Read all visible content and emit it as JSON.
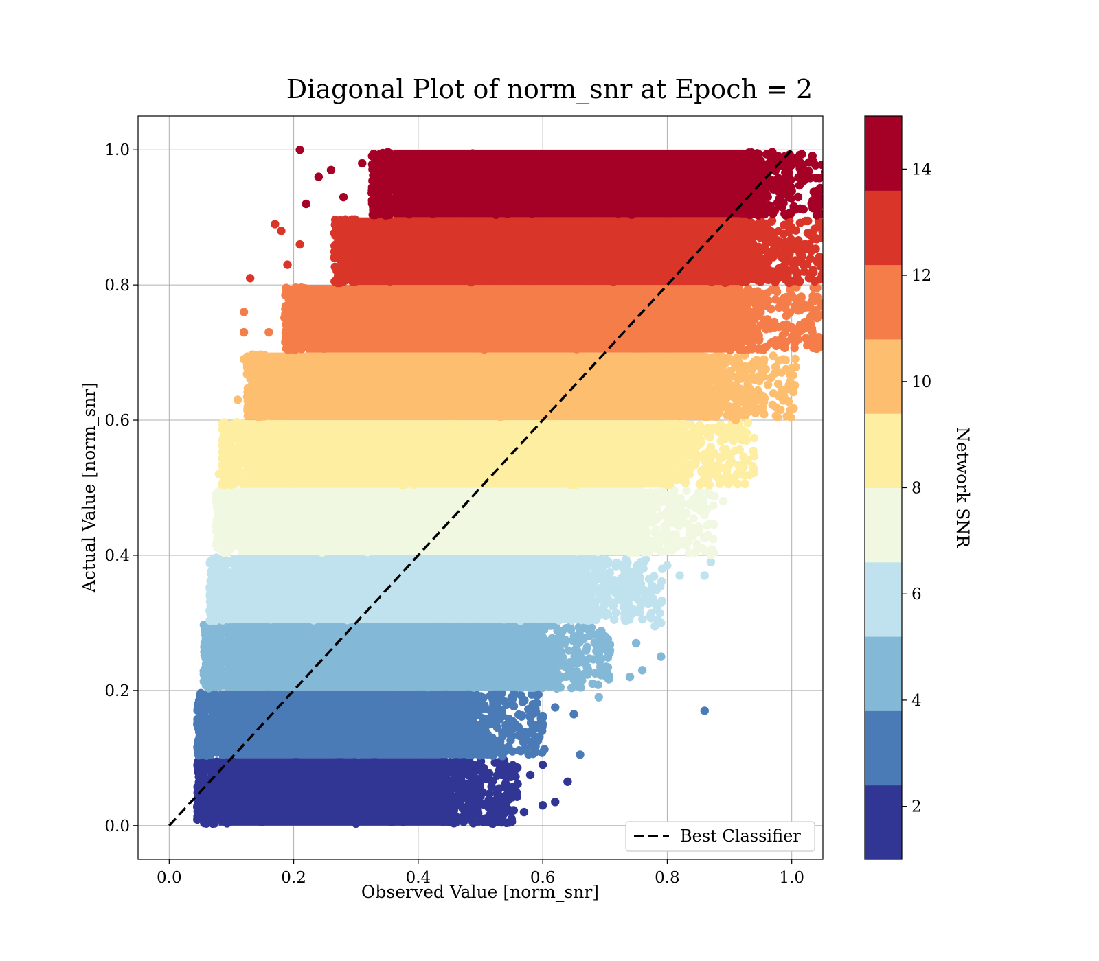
{
  "chart_data": {
    "type": "scatter",
    "title": "Diagonal Plot of norm_snr at Epoch = 2",
    "xlabel": "Observed Value [norm_snr]",
    "ylabel": "Actual Value [norm_snr]",
    "xlim": [
      -0.05,
      1.05
    ],
    "ylim": [
      -0.05,
      1.05
    ],
    "x_ticks": [
      "0.0",
      "0.2",
      "0.4",
      "0.6",
      "0.8",
      "1.0"
    ],
    "y_ticks": [
      "0.0",
      "0.2",
      "0.4",
      "0.6",
      "0.8",
      "1.0"
    ],
    "grid": true,
    "legend": {
      "placement": "lower-right",
      "entries": [
        "Best Classifier"
      ]
    },
    "reference_line": {
      "name": "Best Classifier",
      "style": "dashed",
      "color": "#000000",
      "x": [
        0,
        1
      ],
      "y": [
        0,
        1
      ]
    },
    "colorbar": {
      "label": "Network SNR",
      "range": [
        1,
        15
      ],
      "ticks": [
        "2",
        "4",
        "6",
        "8",
        "10",
        "12",
        "14"
      ],
      "colors": [
        "#313695",
        "#4a7bb7",
        "#83b8d7",
        "#bfe2ee",
        "#f0f8e1",
        "#feeea2",
        "#fdbe70",
        "#f47d4a",
        "#d93529",
        "#a50026"
      ]
    },
    "series": [
      {
        "y_band": [
          0.0,
          0.1
        ],
        "x_core": [
          0.08,
          0.44
        ],
        "outliers": [
          [
            0.07,
            0.003
          ],
          [
            0.3,
            0.003
          ],
          [
            0.52,
            0.003
          ],
          [
            0.53,
            0.005
          ],
          [
            0.55,
            0.01
          ],
          [
            0.57,
            0.02
          ],
          [
            0.6,
            0.03
          ],
          [
            0.62,
            0.035
          ],
          [
            0.64,
            0.065
          ],
          [
            0.58,
            0.075
          ],
          [
            0.6,
            0.09
          ],
          [
            0.5,
            0.09
          ],
          [
            0.48,
            0.06
          ]
        ]
      },
      {
        "y_band": [
          0.1,
          0.2
        ],
        "x_core": [
          0.08,
          0.48
        ],
        "outliers": [
          [
            0.07,
            0.19
          ],
          [
            0.62,
            0.175
          ],
          [
            0.65,
            0.165
          ],
          [
            0.58,
            0.16
          ],
          [
            0.66,
            0.105
          ],
          [
            0.59,
            0.13
          ],
          [
            0.55,
            0.19
          ],
          [
            0.6,
            0.15
          ],
          [
            0.86,
            0.17
          ]
        ]
      },
      {
        "y_band": [
          0.2,
          0.3
        ],
        "x_core": [
          0.09,
          0.58
        ],
        "outliers": [
          [
            0.07,
            0.22
          ],
          [
            0.08,
            0.25
          ],
          [
            0.69,
            0.19
          ],
          [
            0.75,
            0.27
          ],
          [
            0.74,
            0.22
          ],
          [
            0.76,
            0.23
          ],
          [
            0.79,
            0.25
          ],
          [
            0.68,
            0.21
          ],
          [
            0.7,
            0.28
          ]
        ]
      },
      {
        "y_band": [
          0.3,
          0.4
        ],
        "x_core": [
          0.1,
          0.66
        ],
        "outliers": [
          [
            0.09,
            0.32
          ],
          [
            0.82,
            0.37
          ],
          [
            0.87,
            0.39
          ],
          [
            0.86,
            0.37
          ],
          [
            0.79,
            0.3
          ],
          [
            0.78,
            0.295
          ],
          [
            0.8,
            0.385
          ],
          [
            0.79,
            0.33
          ]
        ]
      },
      {
        "y_band": [
          0.4,
          0.5
        ],
        "x_core": [
          0.11,
          0.74
        ],
        "outliers": [
          [
            0.09,
            0.41
          ],
          [
            0.87,
            0.4
          ],
          [
            0.84,
            0.44
          ],
          [
            0.89,
            0.48
          ],
          [
            0.82,
            0.42
          ],
          [
            0.85,
            0.47
          ],
          [
            0.86,
            0.46
          ]
        ]
      },
      {
        "y_band": [
          0.5,
          0.6
        ],
        "x_core": [
          0.12,
          0.8
        ],
        "outliers": [
          [
            0.08,
            0.52
          ],
          [
            0.1,
            0.57
          ],
          [
            0.88,
            0.52
          ],
          [
            0.9,
            0.59
          ],
          [
            0.91,
            0.58
          ],
          [
            0.87,
            0.56
          ],
          [
            0.86,
            0.54
          ]
        ]
      },
      {
        "y_band": [
          0.6,
          0.7
        ],
        "x_core": [
          0.16,
          0.86
        ],
        "outliers": [
          [
            0.11,
            0.63
          ],
          [
            0.12,
            0.69
          ],
          [
            0.92,
            0.675
          ],
          [
            0.91,
            0.6
          ],
          [
            0.93,
            0.63
          ],
          [
            0.94,
            0.66
          ],
          [
            0.9,
            0.615
          ]
        ]
      },
      {
        "y_band": [
          0.7,
          0.8
        ],
        "x_core": [
          0.22,
          0.9
        ],
        "outliers": [
          [
            0.12,
            0.73
          ],
          [
            0.12,
            0.76
          ],
          [
            0.16,
            0.73
          ],
          [
            0.95,
            0.76
          ],
          [
            0.94,
            0.79
          ],
          [
            0.95,
            0.74
          ],
          [
            0.19,
            0.79
          ]
        ]
      },
      {
        "y_band": [
          0.8,
          0.9
        ],
        "x_core": [
          0.3,
          0.92
        ],
        "outliers": [
          [
            0.13,
            0.81
          ],
          [
            0.17,
            0.89
          ],
          [
            0.18,
            0.88
          ],
          [
            0.21,
            0.86
          ],
          [
            0.19,
            0.83
          ],
          [
            0.95,
            0.81
          ],
          [
            0.96,
            0.85
          ]
        ]
      },
      {
        "y_band": [
          0.9,
          1.0
        ],
        "x_core": [
          0.36,
          0.93
        ],
        "outliers": [
          [
            0.21,
            1.0
          ],
          [
            0.22,
            0.92
          ],
          [
            0.24,
            0.96
          ],
          [
            0.26,
            0.97
          ],
          [
            0.28,
            0.93
          ],
          [
            0.31,
            0.98
          ],
          [
            0.34,
            0.99
          ],
          [
            0.96,
            0.95
          ]
        ]
      }
    ]
  }
}
